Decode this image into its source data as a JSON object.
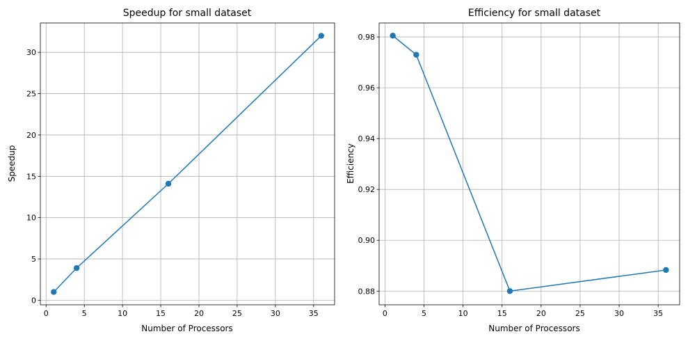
{
  "figure": {
    "background": "#ffffff"
  },
  "chart_data": [
    {
      "type": "line",
      "title": "Speedup for small dataset",
      "xlabel": "Number of Processors",
      "ylabel": "Speedup",
      "x": [
        1,
        4,
        16,
        36
      ],
      "series": [
        {
          "values": [
            1.0,
            3.9,
            14.1,
            32.0
          ],
          "color": "#1f77b4",
          "marker": "circle"
        }
      ],
      "xlim": [
        -0.75,
        37.75
      ],
      "ylim": [
        -0.55,
        33.55
      ],
      "xticks": [
        0,
        5,
        10,
        15,
        20,
        25,
        30,
        35
      ],
      "xtick_labels": [
        "0",
        "5",
        "10",
        "15",
        "20",
        "25",
        "30",
        "35"
      ],
      "yticks": [
        0,
        5,
        10,
        15,
        20,
        25,
        30
      ],
      "ytick_labels": [
        "0",
        "5",
        "10",
        "15",
        "20",
        "25",
        "30"
      ],
      "grid": true,
      "grid_color": "#b0b0b0"
    },
    {
      "type": "line",
      "title": "Efficiency for small dataset",
      "xlabel": "Number of Processors",
      "ylabel": "Efficiency",
      "x": [
        1,
        4,
        16,
        36
      ],
      "series": [
        {
          "values": [
            0.9805,
            0.973,
            0.88,
            0.8883
          ],
          "color": "#1f77b4",
          "marker": "circle"
        }
      ],
      "xlim": [
        -0.75,
        37.75
      ],
      "ylim": [
        0.8746,
        0.9855
      ],
      "xticks": [
        0,
        5,
        10,
        15,
        20,
        25,
        30,
        35
      ],
      "xtick_labels": [
        "0",
        "5",
        "10",
        "15",
        "20",
        "25",
        "30",
        "35"
      ],
      "yticks": [
        0.88,
        0.9,
        0.92,
        0.94,
        0.96,
        0.98
      ],
      "ytick_labels": [
        "0.88",
        "0.90",
        "0.92",
        "0.94",
        "0.96",
        "0.98"
      ],
      "grid": true,
      "grid_color": "#b0b0b0"
    }
  ]
}
